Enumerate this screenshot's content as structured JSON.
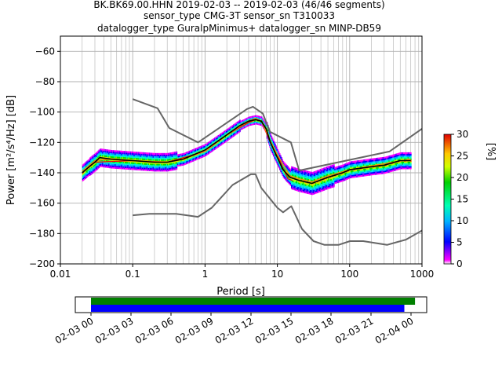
{
  "header": {
    "line1": "BK.BK69.00.HHN   2019-02-03 -- 2019-02-03  (46/46 segments)",
    "line2": "sensor_type CMG-3T sensor_sn T310033",
    "line3": "datalogger_type GuralpMinimus+ datalogger_sn MINP-DB59"
  },
  "chart_data": [
    {
      "type": "heatmap",
      "xlabel": "Period [s]",
      "ylabel": "Power [m²/s⁴/Hz] [dB]",
      "x_scale": "log",
      "xlim": [
        0.01,
        1000
      ],
      "ylim": [
        -200,
        -50
      ],
      "grid": true,
      "x_ticks": [
        0.01,
        0.1,
        1,
        10,
        100,
        1000
      ],
      "x_tick_labels": [
        "0.01",
        "0.1",
        "1",
        "10",
        "100",
        "1000"
      ],
      "y_ticks": [
        -200,
        -180,
        -160,
        -140,
        -120,
        -100,
        -80,
        -60
      ],
      "y_tick_labels": [
        "−200",
        "−180",
        "−160",
        "−140",
        "−120",
        "−100",
        "−80",
        "−60"
      ],
      "colorbar": {
        "label": "[%]",
        "range": [
          0,
          30
        ],
        "ticks": [
          0,
          5,
          10,
          15,
          20,
          25,
          30
        ],
        "tick_labels": [
          "0",
          "5",
          "10",
          "15",
          "20",
          "25",
          "30"
        ]
      },
      "series": [
        {
          "role": "new-high-noise-model",
          "color": "#666666",
          "points": [
            [
              0.1,
              -91.5
            ],
            [
              0.22,
              -97.5
            ],
            [
              0.32,
              -110.5
            ],
            [
              0.8,
              -120
            ],
            [
              3.8,
              -98
            ],
            [
              4.6,
              -96.5
            ],
            [
              6.3,
              -101
            ],
            [
              7.9,
              -113
            ],
            [
              15.4,
              -120
            ],
            [
              20,
              -138.5
            ],
            [
              354.8,
              -126
            ],
            [
              1000,
              -111
            ]
          ]
        },
        {
          "role": "new-low-noise-model",
          "color": "#666666",
          "points": [
            [
              0.1,
              -168
            ],
            [
              0.17,
              -167
            ],
            [
              0.4,
              -167
            ],
            [
              0.8,
              -169
            ],
            [
              1.24,
              -163
            ],
            [
              2.4,
              -148
            ],
            [
              4.3,
              -141
            ],
            [
              5,
              -141
            ],
            [
              6,
              -150
            ],
            [
              10,
              -163
            ],
            [
              12,
              -166
            ],
            [
              15.6,
              -162
            ],
            [
              21.9,
              -177
            ],
            [
              31.6,
              -185
            ],
            [
              45,
              -187.5
            ],
            [
              70,
              -187.5
            ],
            [
              101,
              -185
            ],
            [
              154,
              -185
            ],
            [
              328,
              -187.5
            ],
            [
              600,
              -184
            ],
            [
              1000,
              -178
            ]
          ]
        },
        {
          "role": "median",
          "color": "#000000",
          "points": [
            [
              0.02,
              -140
            ],
            [
              0.025,
              -136
            ],
            [
              0.03,
              -133
            ],
            [
              0.035,
              -130
            ],
            [
              0.05,
              -131
            ],
            [
              0.1,
              -132
            ],
            [
              0.2,
              -133
            ],
            [
              0.3,
              -133
            ],
            [
              0.5,
              -131
            ],
            [
              1,
              -125
            ],
            [
              2,
              -115
            ],
            [
              3,
              -109
            ],
            [
              4,
              -106
            ],
            [
              5,
              -105
            ],
            [
              6,
              -106
            ],
            [
              7,
              -111
            ],
            [
              8,
              -120
            ],
            [
              10,
              -130
            ],
            [
              12,
              -138
            ],
            [
              15,
              -143
            ],
            [
              20,
              -145
            ],
            [
              30,
              -147
            ],
            [
              50,
              -143
            ],
            [
              80,
              -140
            ],
            [
              100,
              -138
            ],
            [
              200,
              -136
            ],
            [
              300,
              -135
            ],
            [
              500,
              -132
            ],
            [
              700,
              -132
            ]
          ]
        },
        {
          "role": "mode",
          "color": "#ff7f0e",
          "points": [
            [
              0.02,
              -139
            ],
            [
              0.03,
              -132
            ],
            [
              0.05,
              -131
            ],
            [
              0.1,
              -132
            ],
            [
              0.3,
              -133
            ],
            [
              0.5,
              -131
            ],
            [
              1,
              -126
            ],
            [
              2,
              -115
            ],
            [
              4,
              -106
            ],
            [
              5,
              -104
            ],
            [
              6,
              -106
            ],
            [
              8,
              -119
            ],
            [
              10,
              -128
            ],
            [
              15,
              -142
            ],
            [
              20,
              -144
            ],
            [
              30,
              -146
            ],
            [
              50,
              -142
            ],
            [
              100,
              -138
            ],
            [
              300,
              -134
            ],
            [
              700,
              -131
            ]
          ]
        },
        {
          "role": "reference",
          "color": "#ff0000",
          "points": [
            [
              0.02,
              -140
            ],
            [
              0.03,
              -133
            ],
            [
              0.1,
              -132
            ],
            [
              0.3,
              -133
            ],
            [
              1,
              -126
            ],
            [
              2,
              -115
            ],
            [
              4,
              -107
            ],
            [
              5,
              -105
            ],
            [
              6,
              -106
            ],
            [
              8,
              -120
            ],
            [
              10,
              -128
            ],
            [
              12,
              -137
            ],
            [
              14,
              -144
            ],
            [
              16,
              -145
            ]
          ]
        }
      ]
    },
    {
      "type": "timeline",
      "x_tick_labels": [
        "02-03 00",
        "02-03 03",
        "02-03 06",
        "02-03 09",
        "02-03 12",
        "02-03 15",
        "02-03 18",
        "02-03 21",
        "02-04 00"
      ],
      "bars": [
        {
          "role": "data-coverage",
          "color": "#008000",
          "start_hour": 0,
          "end_hour": 24.3
        },
        {
          "role": "psd-segments",
          "color": "#0000ff",
          "start_hour": 0,
          "end_hour": 23.5
        }
      ]
    }
  ]
}
